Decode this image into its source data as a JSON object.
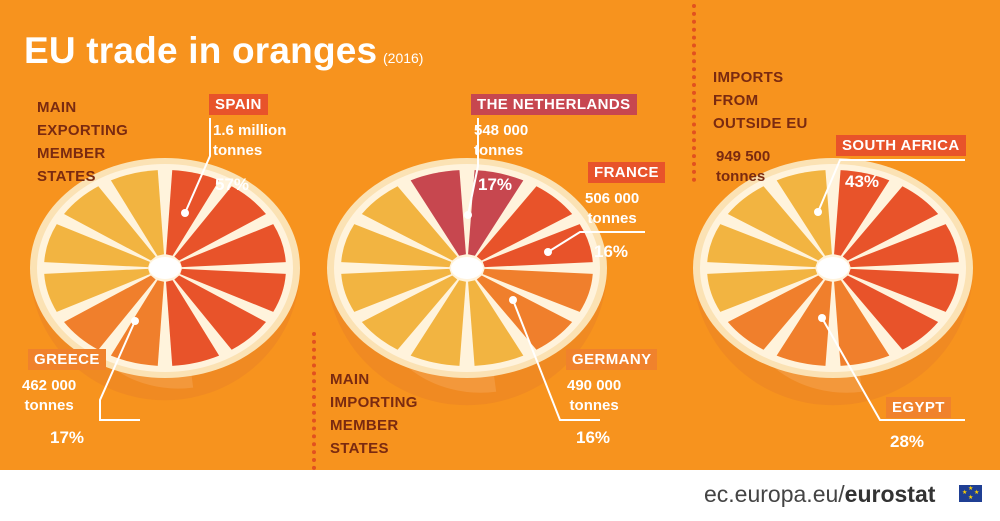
{
  "title": "EU trade in oranges",
  "year": "(2016)",
  "footer": {
    "site": "ec.europa.eu/",
    "brand": "eurostat"
  },
  "colors": {
    "background": "#f7931e",
    "dark_label": "#7a2a10",
    "slice_dark": "#e8532a",
    "slice_mid": "#f07f2c",
    "slice_light": "#f2b441",
    "slice_netherlands": "#c7474f",
    "dotted_divider": "#e2511f"
  },
  "chart_data": [
    {
      "type": "pie",
      "title": "MAIN EXPORTING MEMBER STATES",
      "labels": [
        "SPAIN",
        "GREECE"
      ],
      "tonnes": [
        "1.6 million tonnes",
        "462 000 tonnes"
      ],
      "values": [
        57,
        17
      ],
      "unit": "%"
    },
    {
      "type": "pie",
      "title": "MAIN IMPORTING MEMBER STATES",
      "labels": [
        "THE NETHERLANDS",
        "FRANCE",
        "GERMANY"
      ],
      "tonnes": [
        "548 000 tonnes",
        "506 000 tonnes",
        "490 000 tonnes"
      ],
      "values": [
        17,
        16,
        16
      ],
      "unit": "%"
    },
    {
      "type": "pie",
      "title": "IMPORTS FROM OUTSIDE EU",
      "total": "949 500 tonnes",
      "labels": [
        "SOUTH AFRICA",
        "EGYPT"
      ],
      "values": [
        43,
        28
      ],
      "unit": "%"
    }
  ],
  "text": {
    "export_title": "MAIN\nEXPORTING\nMEMBER\nSTATES",
    "import_title": "MAIN\nIMPORTING\nMEMBER\nSTATES",
    "outside_title": "IMPORTS\nFROM\nOUTSIDE EU",
    "outside_total": "949 500\ntonnes",
    "spain": {
      "name": "SPAIN",
      "amount": "1.6 million\ntonnes",
      "pct": "57%"
    },
    "greece": {
      "name": "GREECE",
      "amount": "462 000\ntonnes",
      "pct": "17%"
    },
    "netherlands": {
      "name": "THE NETHERLANDS",
      "amount": "548 000\ntonnes",
      "pct": "17%"
    },
    "france": {
      "name": "FRANCE",
      "amount": "506 000\ntonnes",
      "pct": "16%"
    },
    "germany": {
      "name": "GERMANY",
      "amount": "490 000\ntonnes",
      "pct": "16%"
    },
    "south_africa": {
      "name": "SOUTH AFRICA",
      "pct": "43%"
    },
    "egypt": {
      "name": "EGYPT",
      "pct": "28%"
    }
  }
}
